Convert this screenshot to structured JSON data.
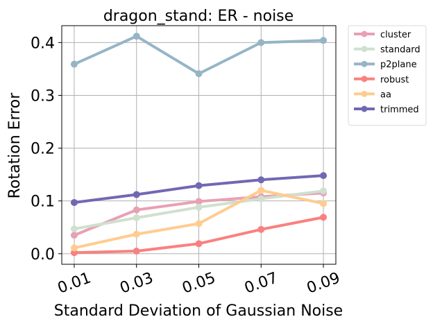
{
  "chart_data": {
    "type": "line",
    "title": "dragon_stand: ER - noise",
    "xlabel": "Standard Deviation of Gaussian Noise",
    "ylabel": "Rotation Error",
    "categories": [
      "0.01",
      "0.03",
      "0.05",
      "0.07",
      "0.09"
    ],
    "x": [
      0.01,
      0.03,
      0.05,
      0.07,
      0.09
    ],
    "xlim": [
      0.006,
      0.094
    ],
    "ylim": [
      -0.02,
      0.432
    ],
    "yticks": [
      0.0,
      0.1,
      0.2,
      0.3,
      0.4
    ],
    "ytick_labels": [
      "0.0",
      "0.1",
      "0.2",
      "0.3",
      "0.4"
    ],
    "x_tick_rotation_deg": 20,
    "grid": true,
    "legend_position": "outside-top-right",
    "series": [
      {
        "name": "cluster",
        "color": "#e8a0b4",
        "values": [
          0.035,
          0.083,
          0.099,
          0.108,
          0.115
        ]
      },
      {
        "name": "standard",
        "color": "#cfe0cf",
        "values": [
          0.047,
          0.068,
          0.088,
          0.104,
          0.119
        ]
      },
      {
        "name": "p2plane",
        "color": "#95b5c6",
        "values": [
          0.359,
          0.412,
          0.341,
          0.4,
          0.404
        ]
      },
      {
        "name": "robust",
        "color": "#fa8080",
        "values": [
          0.002,
          0.005,
          0.019,
          0.046,
          0.069
        ]
      },
      {
        "name": "aa",
        "color": "#ffcc8f",
        "values": [
          0.011,
          0.037,
          0.057,
          0.12,
          0.095
        ]
      },
      {
        "name": "trimmed",
        "color": "#7168b3",
        "values": [
          0.097,
          0.112,
          0.129,
          0.14,
          0.148
        ]
      }
    ]
  }
}
